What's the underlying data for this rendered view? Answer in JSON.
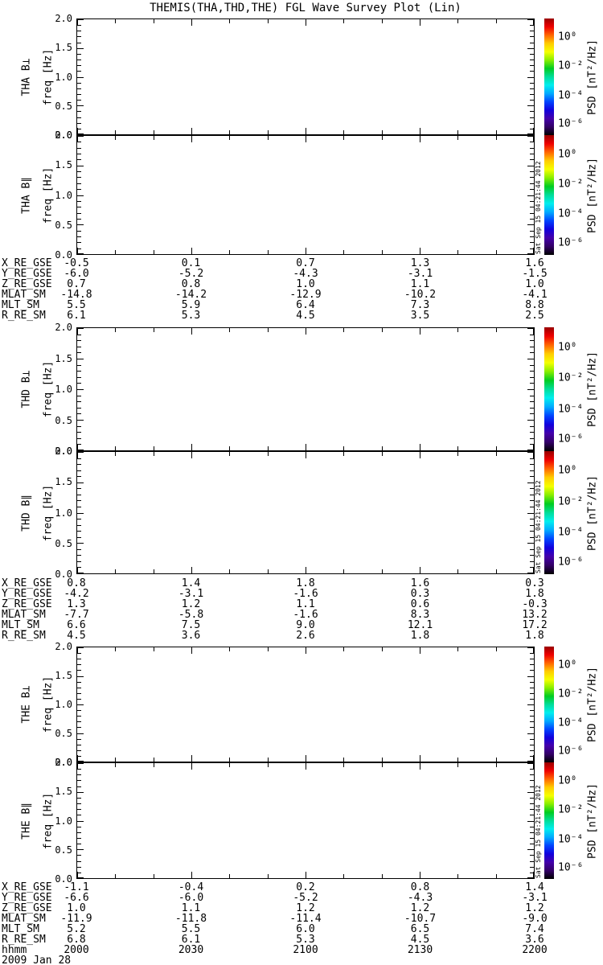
{
  "title": "THEMIS(THA,THD,THE) FGL Wave Survey Plot (Lin)",
  "stamp": "Sat Sep 15 04:21:44 2012",
  "yaxis": {
    "label": "freq [Hz]",
    "ticks": [
      "2.0",
      "1.5",
      "1.0",
      "0.5",
      "0.0"
    ]
  },
  "panels": [
    {
      "name": "THA B⊥"
    },
    {
      "name": "THA B∥"
    },
    {
      "name": "THD B⊥"
    },
    {
      "name": "THD B∥"
    },
    {
      "name": "THE B⊥"
    },
    {
      "name": "THE B∥"
    }
  ],
  "colorbar": {
    "axis_label": "PSD [nT²/Hz]",
    "tick_labels": [
      "10⁰",
      "10⁻²",
      "10⁻⁴",
      "10⁻⁶"
    ],
    "gradient_top_to_bottom": [
      "#990000",
      "#ee0000",
      "#ff6600",
      "#ffcc00",
      "#f5ff00",
      "#88ee00",
      "#00cc22",
      "#00dd99",
      "#00eeee",
      "#00aaff",
      "#0044ff",
      "#1100dd",
      "#4400aa",
      "#330066",
      "#000000"
    ]
  },
  "ephemeris_blocks": [
    {
      "rows": [
        {
          "label": "X_RE_GSE",
          "values": [
            "-0.5",
            "0.1",
            "0.7",
            "1.3",
            "1.6"
          ]
        },
        {
          "label": "Y_RE_GSE",
          "values": [
            "-6.0",
            "-5.2",
            "-4.3",
            "-3.1",
            "-1.5"
          ]
        },
        {
          "label": "Z_RE_GSE",
          "values": [
            "0.7",
            "0.8",
            "1.0",
            "1.1",
            "1.0"
          ]
        },
        {
          "label": "MLAT_SM",
          "values": [
            "-14.8",
            "-14.2",
            "-12.9",
            "-10.2",
            "-4.1"
          ]
        },
        {
          "label": "MLT_SM",
          "values": [
            "5.5",
            "5.9",
            "6.4",
            "7.3",
            "8.8"
          ]
        },
        {
          "label": "R_RE_SM",
          "values": [
            "6.1",
            "5.3",
            "4.5",
            "3.5",
            "2.5"
          ]
        }
      ]
    },
    {
      "rows": [
        {
          "label": "X_RE_GSE",
          "values": [
            "0.8",
            "1.4",
            "1.8",
            "1.6",
            "0.3"
          ]
        },
        {
          "label": "Y_RE_GSE",
          "values": [
            "-4.2",
            "-3.1",
            "-1.6",
            "0.3",
            "1.8"
          ]
        },
        {
          "label": "Z_RE_GSE",
          "values": [
            "1.3",
            "1.2",
            "1.1",
            "0.6",
            "-0.3"
          ]
        },
        {
          "label": "MLAT_SM",
          "values": [
            "-7.7",
            "-5.8",
            "-1.6",
            "8.3",
            "13.2"
          ]
        },
        {
          "label": "MLT_SM",
          "values": [
            "6.6",
            "7.5",
            "9.0",
            "12.1",
            "17.2"
          ]
        },
        {
          "label": "R_RE_SM",
          "values": [
            "4.5",
            "3.6",
            "2.6",
            "1.8",
            "1.8"
          ]
        }
      ]
    },
    {
      "rows": [
        {
          "label": "X_RE_GSE",
          "values": [
            "-1.1",
            "-0.4",
            "0.2",
            "0.8",
            "1.4"
          ]
        },
        {
          "label": "Y_RE_GSE",
          "values": [
            "-6.6",
            "-6.0",
            "-5.2",
            "-4.3",
            "-3.1"
          ]
        },
        {
          "label": "Z_RE_GSE",
          "values": [
            "1.0",
            "1.1",
            "1.2",
            "1.2",
            "1.2"
          ]
        },
        {
          "label": "MLAT_SM",
          "values": [
            "-11.9",
            "-11.8",
            "-11.4",
            "-10.7",
            "-9.0"
          ]
        },
        {
          "label": "MLT_SM",
          "values": [
            "5.2",
            "5.5",
            "6.0",
            "6.5",
            "7.4"
          ]
        },
        {
          "label": "R_RE_SM",
          "values": [
            "6.8",
            "6.1",
            "5.3",
            "4.5",
            "3.6"
          ]
        }
      ]
    }
  ],
  "time_axis": {
    "label": "hhmm",
    "values": [
      "2000",
      "2030",
      "2100",
      "2130",
      "2200"
    ],
    "date": "2009 Jan 28"
  },
  "chart_data": {
    "type": "heatmap",
    "title": "THEMIS(THA,THD,THE) FGL Wave Survey Plot (Lin)",
    "subtype": "wave power spectrogram, 6 stacked panels (3 spacecraft × B-perp / B-parallel), all panels blank (no spectral data rendered)",
    "panels": [
      "THA B⊥",
      "THA B∥",
      "THD B⊥",
      "THD B∥",
      "THE B⊥",
      "THE B∥"
    ],
    "x": {
      "label": "hhmm",
      "date": "2009 Jan 28",
      "tick_labels": [
        "2000",
        "2030",
        "2100",
        "2130",
        "2200"
      ],
      "minor_tick_minutes": 10,
      "range": [
        "2000",
        "2200"
      ]
    },
    "y": {
      "label": "freq [Hz]",
      "range": [
        0.0,
        2.0
      ],
      "major_tick_step": 0.5,
      "minor_tick_step": 0.1
    },
    "z": {
      "label": "PSD [nT²/Hz]",
      "scale": "log",
      "tick_labels": [
        "10⁰",
        "10⁻²",
        "10⁻⁴",
        "10⁻⁶"
      ],
      "colormap": "rainbow (red high → black low)"
    },
    "values": [],
    "grid": false,
    "legend_position": "right colorbars, one per panel",
    "support_data_rows_per_block": [
      "X_RE_GSE",
      "Y_RE_GSE",
      "Z_RE_GSE",
      "MLAT_SM",
      "MLT_SM",
      "R_RE_SM"
    ]
  }
}
